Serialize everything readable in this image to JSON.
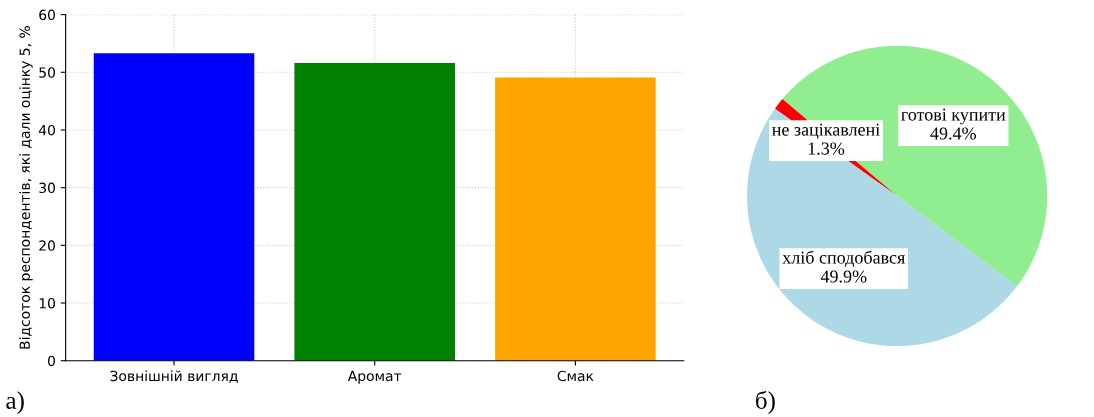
{
  "chart_data": [
    {
      "type": "bar",
      "ylabel": "Відсоток респондентів, які дали оцінку 5, %",
      "categories": [
        "Зовнішній вигляд",
        "Аромат",
        "Смак"
      ],
      "values": [
        53.3,
        51.6,
        49.1
      ],
      "colors": [
        "#0000ff",
        "#008000",
        "#ffa500"
      ],
      "ylim": [
        0,
        60
      ],
      "yticks": [
        0,
        10,
        20,
        30,
        40,
        50,
        60
      ],
      "grid": true,
      "annotations": [
        "а)"
      ]
    },
    {
      "type": "pie",
      "categories": [
        "готові купити",
        "не зацікавлені",
        "хліб сподобався"
      ],
      "values": [
        49.4,
        1.3,
        49.9
      ],
      "value_labels": [
        "49.4%",
        "1.3%",
        "49.9%"
      ],
      "colors": [
        "#90ee90",
        "#ff0000",
        "#add8e6"
      ],
      "annotations": [
        "б)"
      ]
    }
  ]
}
